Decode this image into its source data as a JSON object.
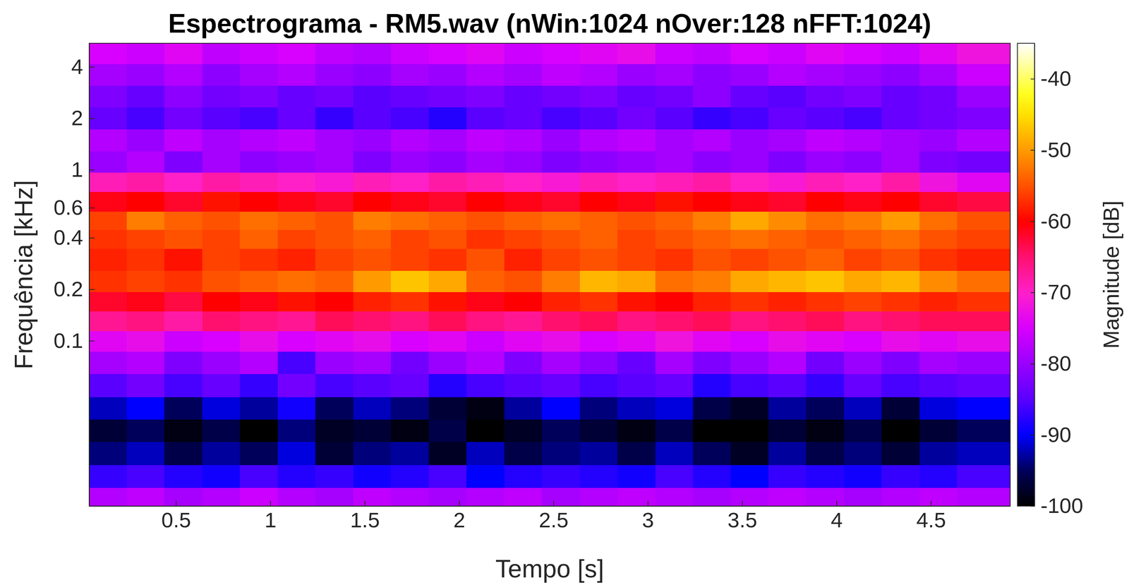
{
  "chart_data": {
    "type": "heatmap",
    "title": "Espectrograma - RM5.wav (nWin:1024 nOver:128 nFFT:1024)",
    "x_label": "Tempo [s]",
    "y_label": "Frequência [kHz]",
    "log": "y",
    "xlim": [
      0.04,
      4.92
    ],
    "xticks": [
      0.5,
      1,
      1.5,
      2,
      2.5,
      3,
      3.5,
      4,
      4.5
    ],
    "ylim": [
      0.0108,
      5.5
    ],
    "yticks": [
      0.1,
      0.2,
      0.4,
      0.6,
      1,
      2,
      4
    ],
    "x": [
      0.14,
      0.34,
      0.54,
      0.74,
      0.94,
      1.14,
      1.34,
      1.54,
      1.74,
      1.94,
      2.14,
      2.34,
      2.54,
      2.74,
      2.94,
      3.14,
      3.34,
      3.54,
      3.74,
      3.94,
      4.14,
      4.34,
      4.54,
      4.74
    ],
    "y": [
      0.012,
      0.016,
      0.022,
      0.03,
      0.04,
      0.055,
      0.075,
      0.1,
      0.13,
      0.17,
      0.22,
      0.3,
      0.4,
      0.5,
      0.65,
      0.85,
      1.1,
      1.5,
      2,
      2.7,
      3.6,
      4.8
    ],
    "z": [
      [
        -78,
        -77,
        -79,
        -78,
        -76,
        -78,
        -79,
        -77,
        -78,
        -79,
        -78,
        -77,
        -79,
        -78,
        -77,
        -78,
        -79,
        -78,
        -77,
        -78,
        -79,
        -78,
        -77,
        -78
      ],
      [
        -87,
        -86,
        -88,
        -89,
        -86,
        -88,
        -87,
        -89,
        -88,
        -86,
        -90,
        -88,
        -87,
        -88,
        -89,
        -86,
        -88,
        -90,
        -87,
        -88,
        -89,
        -87,
        -88,
        -86
      ],
      [
        -94,
        -92,
        -96,
        -93,
        -95,
        -91,
        -97,
        -94,
        -93,
        -98,
        -92,
        -96,
        -94,
        -93,
        -96,
        -92,
        -95,
        -98,
        -93,
        -96,
        -94,
        -97,
        -93,
        -92
      ],
      [
        -97,
        -95,
        -99,
        -96,
        -100,
        -94,
        -98,
        -97,
        -99,
        -96,
        -100,
        -98,
        -95,
        -97,
        -99,
        -96,
        -100,
        -100,
        -97,
        -99,
        -96,
        -100,
        -97,
        -95
      ],
      [
        -92,
        -90,
        -95,
        -91,
        -93,
        -89,
        -95,
        -92,
        -94,
        -97,
        -99,
        -93,
        -90,
        -94,
        -92,
        -91,
        -96,
        -98,
        -93,
        -95,
        -92,
        -97,
        -91,
        -90
      ],
      [
        -85,
        -83,
        -86,
        -84,
        -87,
        -83,
        -86,
        -85,
        -84,
        -88,
        -86,
        -85,
        -84,
        -86,
        -85,
        -84,
        -88,
        -86,
        -85,
        -87,
        -84,
        -86,
        -85,
        -84
      ],
      [
        -79,
        -78,
        -82,
        -80,
        -78,
        -86,
        -80,
        -79,
        -83,
        -80,
        -78,
        -82,
        -79,
        -81,
        -84,
        -79,
        -82,
        -80,
        -78,
        -83,
        -80,
        -82,
        -79,
        -80
      ],
      [
        -74,
        -73,
        -76,
        -75,
        -73,
        -75,
        -74,
        -73,
        -75,
        -74,
        -76,
        -74,
        -73,
        -75,
        -74,
        -72,
        -74,
        -75,
        -73,
        -74,
        -75,
        -73,
        -74,
        -73
      ],
      [
        -67,
        -66,
        -68,
        -65,
        -66,
        -67,
        -64,
        -65,
        -66,
        -64,
        -66,
        -67,
        -65,
        -64,
        -66,
        -65,
        -64,
        -66,
        -65,
        -64,
        -66,
        -65,
        -64,
        -64
      ],
      [
        -62,
        -61,
        -63,
        -60,
        -61,
        -59,
        -60,
        -58,
        -57,
        -59,
        -61,
        -60,
        -58,
        -57,
        -59,
        -60,
        -58,
        -57,
        -58,
        -57,
        -56,
        -57,
        -58,
        -57
      ],
      [
        -57,
        -56,
        -57,
        -55,
        -54,
        -53,
        -54,
        -50,
        -47,
        -49,
        -54,
        -55,
        -52,
        -48,
        -49,
        -53,
        -52,
        -49,
        -48,
        -47,
        -49,
        -48,
        -51,
        -53
      ],
      [
        -58,
        -57,
        -59,
        -56,
        -57,
        -58,
        -56,
        -55,
        -56,
        -57,
        -55,
        -58,
        -56,
        -55,
        -56,
        -57,
        -55,
        -56,
        -55,
        -54,
        -56,
        -55,
        -57,
        -58
      ],
      [
        -57,
        -56,
        -55,
        -56,
        -54,
        -56,
        -55,
        -54,
        -56,
        -55,
        -57,
        -56,
        -55,
        -54,
        -56,
        -55,
        -54,
        -53,
        -54,
        -55,
        -54,
        -53,
        -55,
        -56
      ],
      [
        -56,
        -52,
        -54,
        -55,
        -53,
        -54,
        -55,
        -52,
        -53,
        -54,
        -55,
        -54,
        -53,
        -54,
        -55,
        -54,
        -52,
        -49,
        -51,
        -53,
        -52,
        -50,
        -53,
        -55
      ],
      [
        -61,
        -60,
        -62,
        -59,
        -60,
        -61,
        -62,
        -60,
        -61,
        -62,
        -60,
        -61,
        -62,
        -60,
        -61,
        -59,
        -60,
        -61,
        -62,
        -60,
        -61,
        -60,
        -62,
        -63
      ],
      [
        -69,
        -68,
        -70,
        -68,
        -69,
        -70,
        -71,
        -69,
        -70,
        -68,
        -69,
        -70,
        -71,
        -69,
        -70,
        -69,
        -68,
        -70,
        -71,
        -69,
        -70,
        -68,
        -72,
        -74
      ],
      [
        -80,
        -78,
        -82,
        -79,
        -81,
        -80,
        -79,
        -82,
        -80,
        -81,
        -79,
        -80,
        -82,
        -81,
        -80,
        -79,
        -81,
        -80,
        -82,
        -80,
        -81,
        -79,
        -82,
        -83
      ],
      [
        -78,
        -80,
        -77,
        -79,
        -78,
        -77,
        -79,
        -80,
        -78,
        -79,
        -77,
        -78,
        -80,
        -78,
        -77,
        -79,
        -78,
        -80,
        -79,
        -77,
        -78,
        -79,
        -80,
        -78
      ],
      [
        -84,
        -86,
        -83,
        -85,
        -86,
        -84,
        -87,
        -85,
        -86,
        -88,
        -85,
        -84,
        -86,
        -85,
        -83,
        -85,
        -87,
        -86,
        -84,
        -85,
        -86,
        -84,
        -83,
        -82
      ],
      [
        -82,
        -84,
        -81,
        -83,
        -82,
        -84,
        -83,
        -85,
        -84,
        -83,
        -82,
        -84,
        -83,
        -82,
        -84,
        -83,
        -81,
        -84,
        -85,
        -83,
        -82,
        -84,
        -83,
        -80
      ],
      [
        -79,
        -80,
        -78,
        -81,
        -79,
        -78,
        -80,
        -81,
        -79,
        -80,
        -78,
        -79,
        -77,
        -78,
        -80,
        -79,
        -81,
        -80,
        -78,
        -79,
        -80,
        -81,
        -79,
        -76
      ],
      [
        -75,
        -76,
        -74,
        -77,
        -76,
        -75,
        -77,
        -78,
        -76,
        -75,
        -74,
        -76,
        -75,
        -74,
        -73,
        -76,
        -77,
        -75,
        -76,
        -74,
        -75,
        -76,
        -74,
        -72
      ]
    ],
    "colorbar": {
      "label": "Magnitude [dB]",
      "range": [
        -100,
        -35
      ],
      "ticks": [
        -100,
        -90,
        -80,
        -70,
        -60,
        -50,
        -40
      ]
    }
  }
}
